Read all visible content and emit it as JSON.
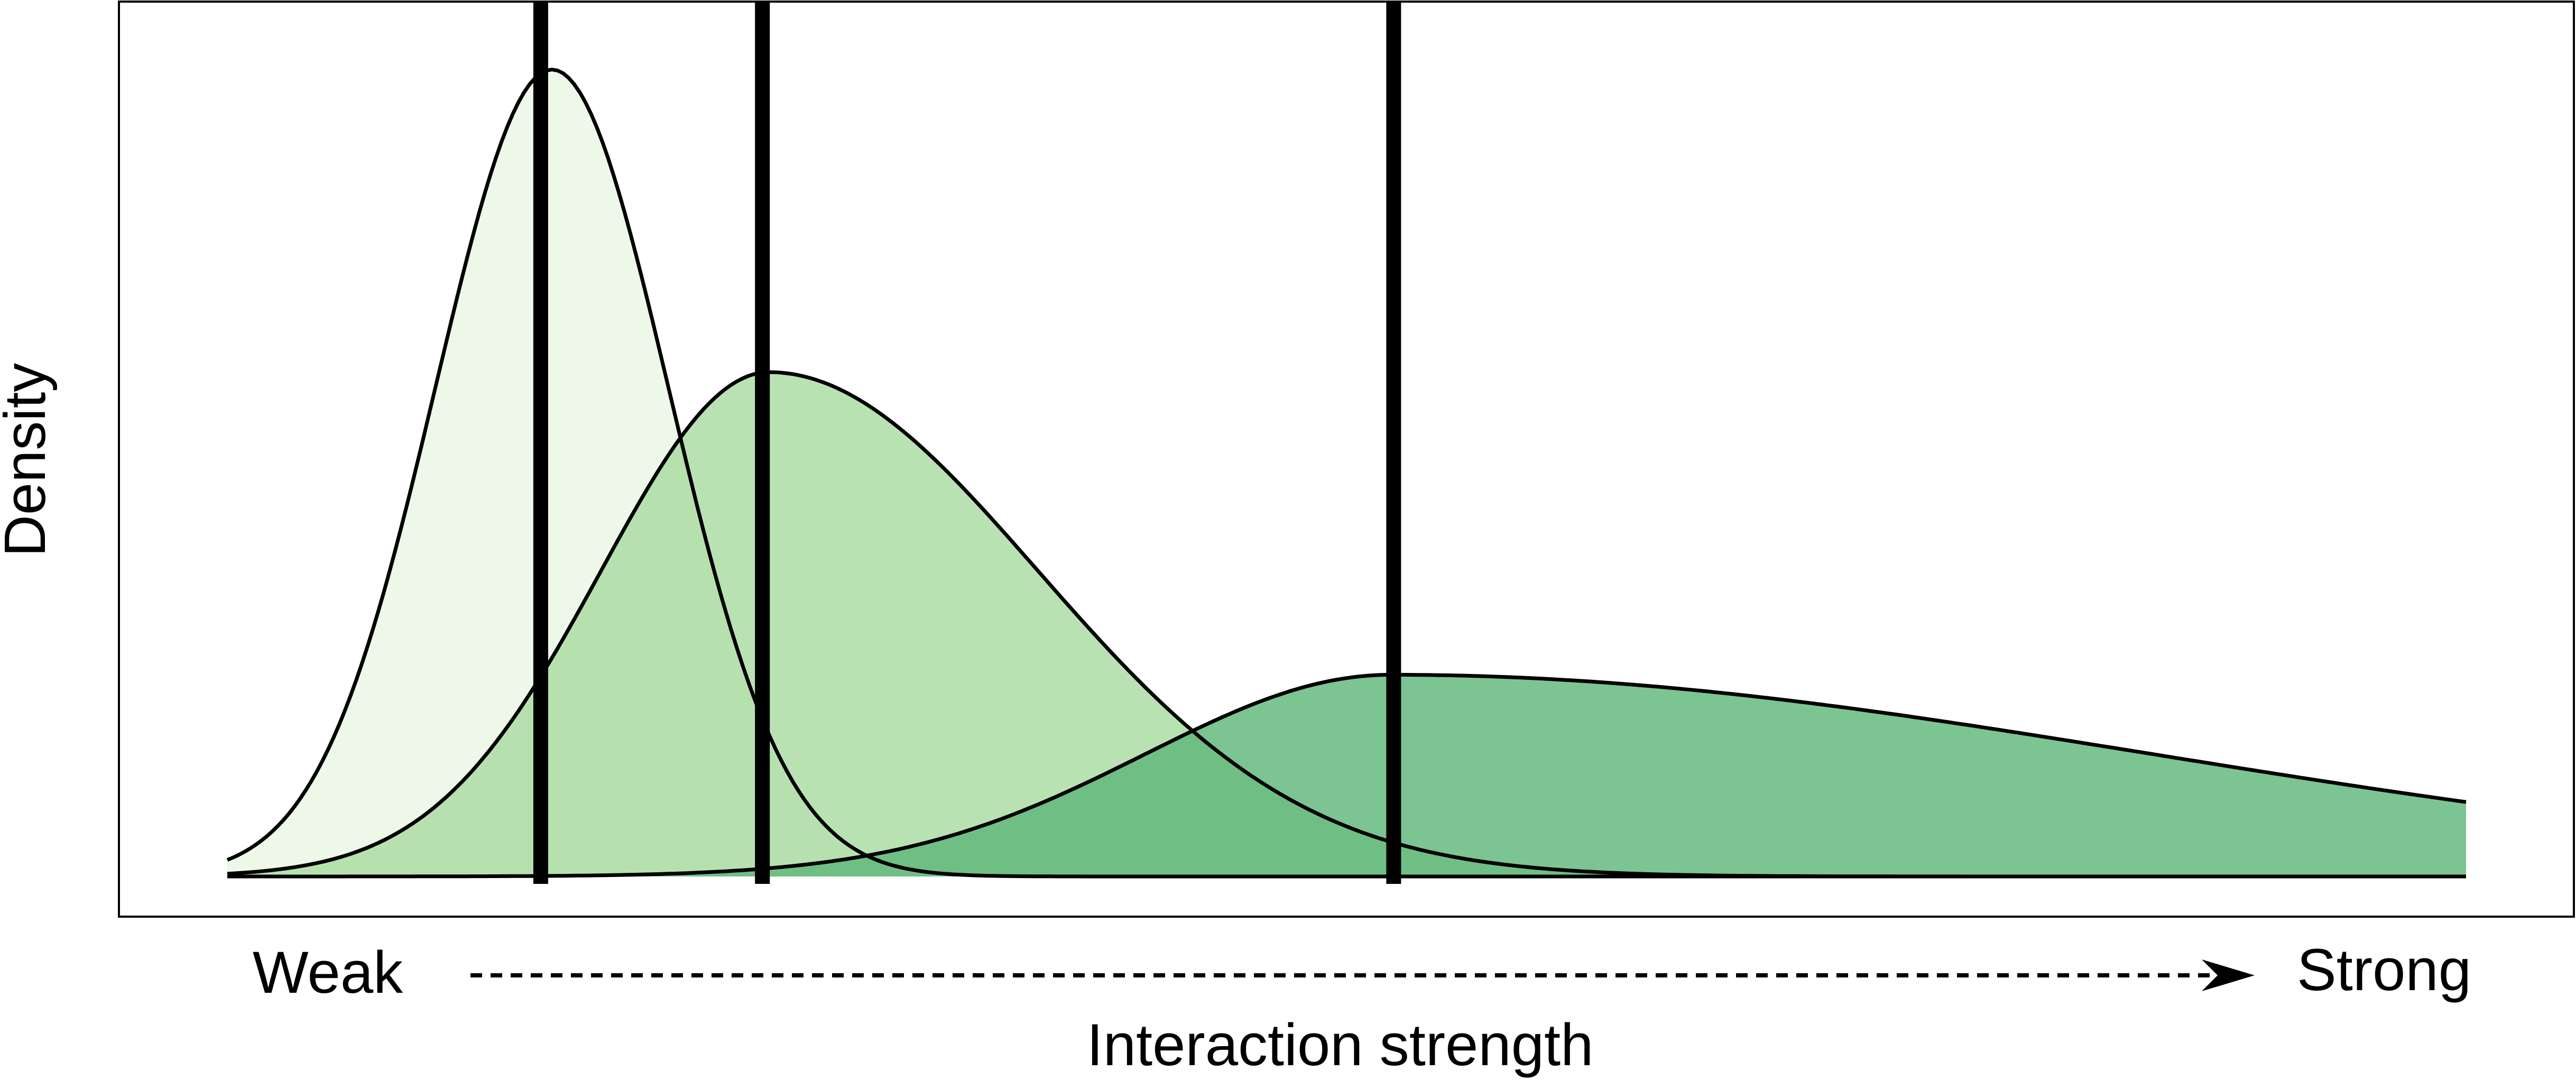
{
  "chart_data": {
    "type": "area",
    "title": "",
    "xlabel": "Interaction strength",
    "ylabel": "Density",
    "x_direction_labels": {
      "low": "Weak",
      "high": "Strong"
    },
    "xlim": [
      0,
      1
    ],
    "ylim": [
      0,
      1
    ],
    "grid": false,
    "legend": "none",
    "ticks_shown": false,
    "series": [
      {
        "color": "#edf8e9",
        "curve": {
          "mean": 0.145,
          "sd_left": 0.052,
          "sd_right": 0.052,
          "peak": 0.96
        },
        "mean_line": 0.14
      },
      {
        "color": "#a9dca2",
        "curve": {
          "mean": 0.242,
          "sd_left": 0.075,
          "sd_right": 0.12,
          "peak": 0.6
        },
        "mean_line": 0.239
      },
      {
        "color": "#5fb77a",
        "curve": {
          "mean": 0.52,
          "sd_left": 0.11,
          "sd_right": 0.34,
          "peak": 0.24
        },
        "mean_line": 0.521
      }
    ]
  }
}
